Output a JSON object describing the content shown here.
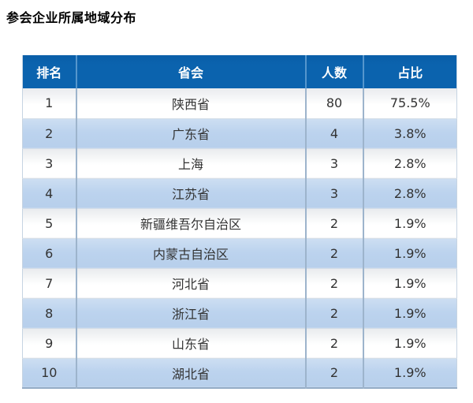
{
  "page_title": "参会企业所属地域分布",
  "colors": {
    "header_bg": "#0b63ae",
    "header_text": "#ffffff",
    "row_alt_bg": "#bdd3ec",
    "row_bg": "#ffffff",
    "body_text": "#333333",
    "header_divider": "#5596cd",
    "body_divider": "#9db4cc"
  },
  "table": {
    "columns": [
      "排名",
      "省会",
      "人数",
      "占比"
    ],
    "rows": [
      {
        "rank": "1",
        "province": "陕西省",
        "count": "80",
        "percent": "75.5%"
      },
      {
        "rank": "2",
        "province": "广东省",
        "count": "4",
        "percent": "3.8%"
      },
      {
        "rank": "3",
        "province": "上海",
        "count": "3",
        "percent": "2.8%"
      },
      {
        "rank": "4",
        "province": "江苏省",
        "count": "3",
        "percent": "2.8%"
      },
      {
        "rank": "5",
        "province": "新疆维吾尔自治区",
        "count": "2",
        "percent": "1.9%"
      },
      {
        "rank": "6",
        "province": "内蒙古自治区",
        "count": "2",
        "percent": "1.9%"
      },
      {
        "rank": "7",
        "province": "河北省",
        "count": "2",
        "percent": "1.9%"
      },
      {
        "rank": "8",
        "province": "浙江省",
        "count": "2",
        "percent": "1.9%"
      },
      {
        "rank": "9",
        "province": "山东省",
        "count": "2",
        "percent": "1.9%"
      },
      {
        "rank": "10",
        "province": "湖北省",
        "count": "2",
        "percent": "1.9%"
      }
    ]
  },
  "chart_data": {
    "type": "table",
    "title": "参会企业所属地域分布",
    "columns": [
      "排名",
      "省会",
      "人数",
      "占比"
    ],
    "rows": [
      [
        1,
        "陕西省",
        80,
        "75.5%"
      ],
      [
        2,
        "广东省",
        4,
        "3.8%"
      ],
      [
        3,
        "上海",
        3,
        "2.8%"
      ],
      [
        4,
        "江苏省",
        3,
        "2.8%"
      ],
      [
        5,
        "新疆维吾尔自治区",
        2,
        "1.9%"
      ],
      [
        6,
        "内蒙古自治区",
        2,
        "1.9%"
      ],
      [
        7,
        "河北省",
        2,
        "1.9%"
      ],
      [
        8,
        "浙江省",
        2,
        "1.9%"
      ],
      [
        9,
        "山东省",
        2,
        "1.9%"
      ],
      [
        10,
        "湖北省",
        2,
        "1.9%"
      ]
    ],
    "layout": {
      "zebra_striping": true,
      "header_style": "solid-blue",
      "alignment": "center"
    }
  }
}
